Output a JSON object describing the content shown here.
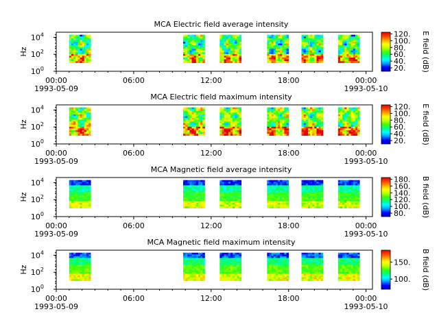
{
  "chart_data": [
    {
      "type": "heatmap",
      "title": "MCA  Electric field average intensity",
      "ylabel": "Hz",
      "colorbar_label": "E field (dB)",
      "colorbar_ticks": [
        "20.",
        "40.",
        "60.",
        "80.",
        "100.",
        "120."
      ],
      "colorbar_range": [
        10,
        125
      ],
      "y_ticks": [
        {
          "base": "10",
          "exp": "0"
        },
        {
          "base": "10",
          "exp": "2"
        },
        {
          "base": "10",
          "exp": "4"
        }
      ],
      "x_ticks": [
        "00:00",
        "06:00",
        "12:00",
        "18:00",
        "00:00"
      ],
      "x_dates": [
        "1993-05-09",
        "1993-05-10"
      ],
      "data_intervals": [
        [
          "01:00",
          "02:40"
        ],
        [
          "09:50",
          "11:30"
        ],
        [
          "12:40",
          "14:20"
        ],
        [
          "16:20",
          "18:00"
        ],
        [
          "19:00",
          "20:40"
        ],
        [
          "21:50",
          "23:30"
        ]
      ],
      "freq_range_hz": [
        10,
        20000
      ]
    },
    {
      "type": "heatmap",
      "title": "MCA  Electric field maximum intensity",
      "ylabel": "Hz",
      "colorbar_label": "E field (dB)",
      "colorbar_ticks": [
        "20.",
        "40.",
        "60.",
        "80.",
        "100.",
        "120."
      ],
      "colorbar_range": [
        10,
        125
      ],
      "y_ticks": [
        {
          "base": "10",
          "exp": "0"
        },
        {
          "base": "10",
          "exp": "2"
        },
        {
          "base": "10",
          "exp": "4"
        }
      ],
      "x_ticks": [
        "00:00",
        "06:00",
        "12:00",
        "18:00",
        "00:00"
      ],
      "x_dates": [
        "1993-05-09",
        "1993-05-10"
      ],
      "data_intervals": [
        [
          "01:00",
          "02:40"
        ],
        [
          "09:50",
          "11:30"
        ],
        [
          "12:40",
          "14:20"
        ],
        [
          "16:20",
          "18:00"
        ],
        [
          "19:00",
          "20:40"
        ],
        [
          "21:50",
          "23:30"
        ]
      ],
      "freq_range_hz": [
        10,
        20000
      ]
    },
    {
      "type": "heatmap",
      "title": "MCA  Magnetic field average intensity",
      "ylabel": "Hz",
      "colorbar_label": "B field (dB)",
      "colorbar_ticks": [
        "80.",
        "100.",
        "120.",
        "140.",
        "160.",
        "180."
      ],
      "colorbar_range": [
        70,
        185
      ],
      "y_ticks": [
        {
          "base": "10",
          "exp": "0"
        },
        {
          "base": "10",
          "exp": "2"
        },
        {
          "base": "10",
          "exp": "4"
        }
      ],
      "x_ticks": [
        "00:00",
        "06:00",
        "12:00",
        "18:00",
        "00:00"
      ],
      "x_dates": [
        "1993-05-09",
        "1993-05-10"
      ],
      "data_intervals": [
        [
          "01:00",
          "02:40"
        ],
        [
          "09:50",
          "11:30"
        ],
        [
          "12:40",
          "14:20"
        ],
        [
          "16:20",
          "18:00"
        ],
        [
          "19:00",
          "20:40"
        ],
        [
          "21:50",
          "23:30"
        ]
      ],
      "freq_range_hz": [
        10,
        20000
      ]
    },
    {
      "type": "heatmap",
      "title": "MCA  Magnetic field maximum intensity",
      "ylabel": "Hz",
      "colorbar_label": "B field (dB)",
      "colorbar_ticks": [
        "100.",
        "150."
      ],
      "colorbar_range": [
        70,
        185
      ],
      "y_ticks": [
        {
          "base": "10",
          "exp": "0"
        },
        {
          "base": "10",
          "exp": "2"
        },
        {
          "base": "10",
          "exp": "4"
        }
      ],
      "x_ticks": [
        "00:00",
        "06:00",
        "12:00",
        "18:00",
        "00:00"
      ],
      "x_dates": [
        "1993-05-09",
        "1993-05-10"
      ],
      "data_intervals": [
        [
          "01:00",
          "02:40"
        ],
        [
          "09:50",
          "11:30"
        ],
        [
          "12:40",
          "14:20"
        ],
        [
          "16:20",
          "18:00"
        ],
        [
          "19:00",
          "20:40"
        ],
        [
          "21:50",
          "23:30"
        ]
      ],
      "freq_range_hz": [
        10,
        20000
      ]
    }
  ],
  "colormap": [
    "#0000cc",
    "#0000ff",
    "#00a0ff",
    "#00ffff",
    "#00ff80",
    "#40ff00",
    "#c0ff00",
    "#ffff00",
    "#ffa000",
    "#ff4000",
    "#e00000"
  ]
}
